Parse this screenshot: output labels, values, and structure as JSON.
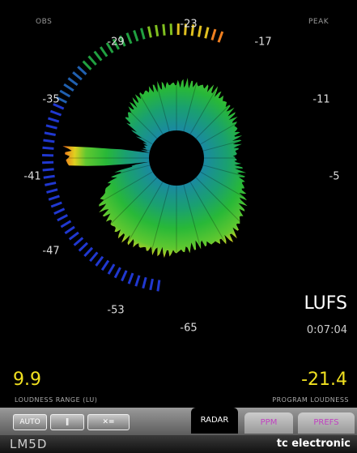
{
  "header": {
    "left": "OBS",
    "right": "PEAK"
  },
  "scale": {
    "labels": [
      "-23",
      "-29",
      "-17",
      "-35",
      "-11",
      "-41",
      "-5",
      "-47",
      "-53",
      "-65"
    ]
  },
  "readout": {
    "unit": "LUFS",
    "time": "0:07:04"
  },
  "loudness_range": {
    "value": "9.9",
    "label": "LOUDNESS RANGE (LU)"
  },
  "program_loudness": {
    "value": "-21.4",
    "label": "PROGRAM LOUDNESS"
  },
  "buttons": [
    "AUTO"
  ],
  "tabs": [
    "RADAR",
    "PPM",
    "PREFS"
  ],
  "footer": {
    "product": "LM5D",
    "brand": "tc electronic"
  }
}
